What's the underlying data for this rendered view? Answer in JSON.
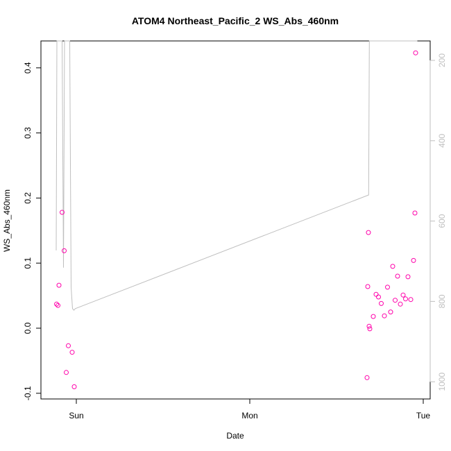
{
  "chart_data": {
    "type": "scatter",
    "title": "ATOM4 Northeast_Pacific_2 WS_Abs_460nm",
    "xlabel": "Date",
    "ylabel": "WS_Abs_460nm",
    "y_ticks": [
      "-0.1",
      "0.0",
      "0.1",
      "0.2",
      "0.3",
      "0.4"
    ],
    "x_ticks": [
      "Sun",
      "Mon",
      "Tue"
    ],
    "y2_ticks": [
      "200",
      "400",
      "600",
      "800",
      "1000"
    ],
    "ylim": [
      -0.11,
      0.44
    ],
    "y2lim": [
      1045,
      92
    ],
    "xlim": [
      -0.099,
      1.985
    ],
    "colors": {
      "points": "#ff00aa",
      "line": "#bfbfbf",
      "axis": "#000000",
      "right_axis": "#bfbfbf"
    },
    "series": [
      {
        "marker": "open-circle",
        "x": [
          -0.114,
          -0.106,
          -0.1,
          -0.082,
          -0.07,
          -0.058,
          -0.046,
          -0.024,
          -0.012,
          1.676,
          1.68,
          1.684,
          1.688,
          1.692,
          1.712,
          1.728,
          1.742,
          1.758,
          1.776,
          1.794,
          1.812,
          1.824,
          1.838,
          1.852,
          1.868,
          1.884,
          1.898,
          1.912,
          1.928,
          1.944,
          1.952,
          1.956
        ],
        "y": [
          0.037,
          0.035,
          0.066,
          0.178,
          0.119,
          -0.068,
          -0.027,
          -0.037,
          -0.09,
          -0.076,
          0.064,
          0.147,
          0.003,
          -0.001,
          0.018,
          0.052,
          0.048,
          0.038,
          0.019,
          0.063,
          0.025,
          0.095,
          0.043,
          0.08,
          0.037,
          0.051,
          0.045,
          0.079,
          0.044,
          0.104,
          0.177,
          0.423
        ]
      },
      {
        "axis": "right",
        "x": [
          -0.116,
          -0.112,
          -0.104,
          -0.096,
          -0.092,
          -0.086,
          -0.082,
          -0.074,
          -0.068,
          -0.062,
          -0.054,
          -0.046,
          -0.038,
          -0.03,
          -0.022,
          -0.014,
          -0.006,
          1.685,
          1.689,
          1.694,
          1.699,
          1.706,
          1.712,
          1.718,
          1.726,
          1.734,
          1.742,
          1.752,
          1.76,
          1.768,
          1.776,
          1.786,
          1.794,
          1.802,
          1.81,
          1.818,
          1.826,
          1.834,
          1.842,
          1.852,
          1.86,
          1.868,
          1.876,
          1.886,
          1.894,
          1.902,
          1.91,
          1.918,
          1.926,
          1.934,
          1.942,
          1.95,
          1.958,
          1.966
        ],
        "y": [
          673,
          92,
          92,
          92,
          92,
          92,
          92,
          716,
          92,
          92,
          92,
          92,
          92,
          765,
          818,
          822,
          818,
          535,
          92,
          92,
          92,
          92,
          92,
          92,
          92,
          92,
          92,
          92,
          92,
          92,
          92,
          92,
          92,
          92,
          92,
          92,
          92,
          92,
          92,
          92,
          92,
          92,
          92,
          92,
          92,
          92,
          92,
          92,
          92,
          92,
          92,
          92,
          92,
          92
        ]
      }
    ]
  }
}
